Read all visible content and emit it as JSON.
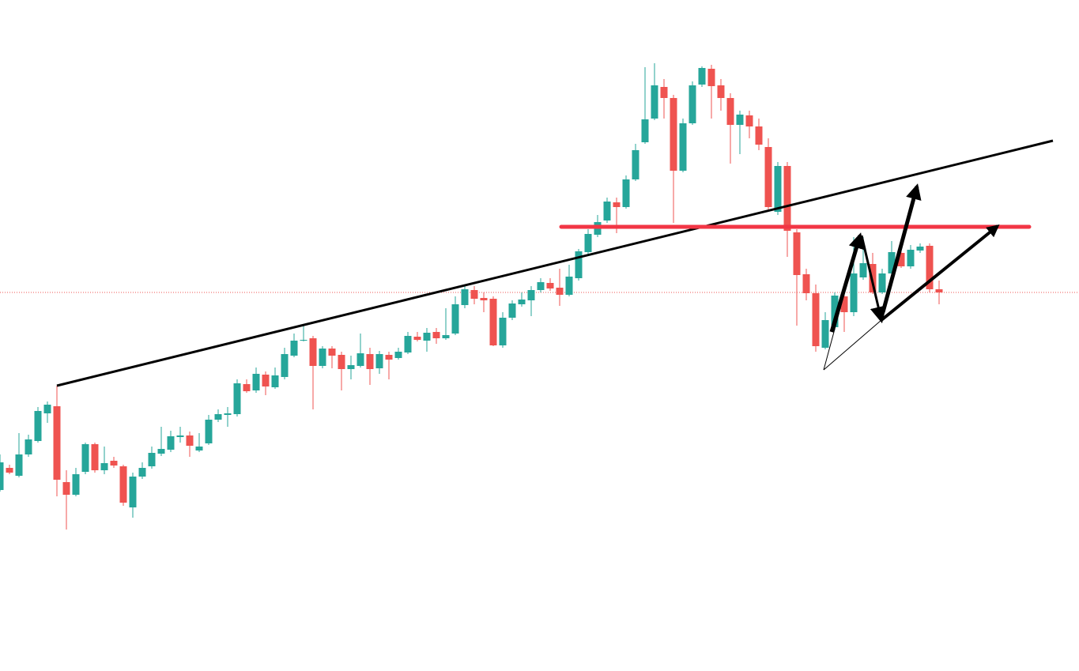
{
  "chart_data": {
    "type": "candlestick",
    "up_color": "#26a69a",
    "down_color": "#ef5350",
    "ylim": [
      151,
      1000
    ],
    "open": [
      380,
      408,
      398,
      425,
      442,
      477,
      486,
      390,
      374,
      403,
      438,
      405,
      417,
      410,
      358,
      397,
      410,
      426,
      431,
      447,
      449,
      430,
      439,
      469,
      475,
      476,
      514,
      506,
      526,
      510,
      523,
      550,
      569,
      572,
      537,
      559,
      551,
      533,
      537,
      552,
      534,
      551,
      547,
      554,
      574,
      569,
      580,
      572,
      578,
      614,
      633,
      623,
      622,
      563,
      598,
      615,
      620,
      633,
      642,
      636,
      627,
      648,
      681,
      703,
      721,
      744,
      738,
      773,
      820,
      850,
      890,
      876,
      784,
      844,
      893,
      913,
      892,
      876,
      842,
      854,
      840,
      814,
      732,
      790,
      706,
      653,
      629,
      560,
      586,
      625,
      605,
      649,
      666,
      630,
      654,
      680,
      663,
      683,
      689,
      634
    ],
    "high": [
      425,
      412,
      452,
      450,
      485,
      492,
      512,
      405,
      408,
      440,
      440,
      435,
      422,
      412,
      402,
      415,
      435,
      460,
      455,
      460,
      454,
      452,
      475,
      482,
      485,
      520,
      520,
      535,
      530,
      535,
      560,
      578,
      590,
      575,
      562,
      562,
      555,
      550,
      578,
      560,
      556,
      555,
      560,
      580,
      580,
      585,
      585,
      610,
      625,
      640,
      638,
      630,
      625,
      605,
      620,
      630,
      638,
      648,
      648,
      660,
      665,
      685,
      710,
      728,
      750,
      750,
      778,
      818,
      915,
      920,
      900,
      880,
      850,
      897,
      916,
      918,
      900,
      882,
      860,
      860,
      850,
      825,
      795,
      795,
      710,
      660,
      640,
      605,
      630,
      630,
      700,
      700,
      680,
      660,
      695,
      685,
      690,
      692,
      692,
      645
    ],
    "low": [
      378,
      400,
      396,
      422,
      440,
      465,
      372,
      330,
      372,
      400,
      402,
      400,
      408,
      360,
      345,
      394,
      407,
      423,
      428,
      440,
      422,
      428,
      437,
      466,
      460,
      473,
      503,
      503,
      500,
      508,
      520,
      548,
      568,
      482,
      534,
      534,
      506,
      520,
      535,
      513,
      527,
      520,
      545,
      552,
      568,
      555,
      565,
      570,
      576,
      610,
      615,
      605,
      562,
      560,
      595,
      612,
      600,
      630,
      632,
      613,
      625,
      645,
      678,
      700,
      718,
      705,
      736,
      771,
      818,
      848,
      850,
      718,
      782,
      842,
      890,
      850,
      860,
      793,
      805,
      825,
      810,
      735,
      728,
      675,
      588,
      620,
      555,
      558,
      582,
      580,
      600,
      646,
      628,
      628,
      650,
      661,
      660,
      680,
      630,
      615
    ],
    "close": [
      415,
      402,
      425,
      444,
      480,
      488,
      393,
      374,
      400,
      438,
      405,
      414,
      411,
      364,
      397,
      408,
      427,
      432,
      448,
      449,
      436,
      435,
      469,
      476,
      477,
      515,
      505,
      527,
      511,
      525,
      552,
      569,
      570,
      537,
      559,
      550,
      533,
      538,
      553,
      533,
      552,
      545,
      555,
      575,
      570,
      579,
      572,
      576,
      615,
      634,
      622,
      620,
      563,
      598,
      616,
      621,
      633,
      643,
      635,
      627,
      650,
      682,
      704,
      719,
      745,
      738,
      773,
      810,
      849,
      892,
      876,
      784,
      844,
      892,
      914,
      891,
      876,
      842,
      855,
      840,
      817,
      738,
      790,
      708,
      652,
      629,
      562,
      595,
      626,
      605,
      654,
      667,
      630,
      654,
      681,
      663,
      684,
      688,
      634,
      630
    ]
  }
}
